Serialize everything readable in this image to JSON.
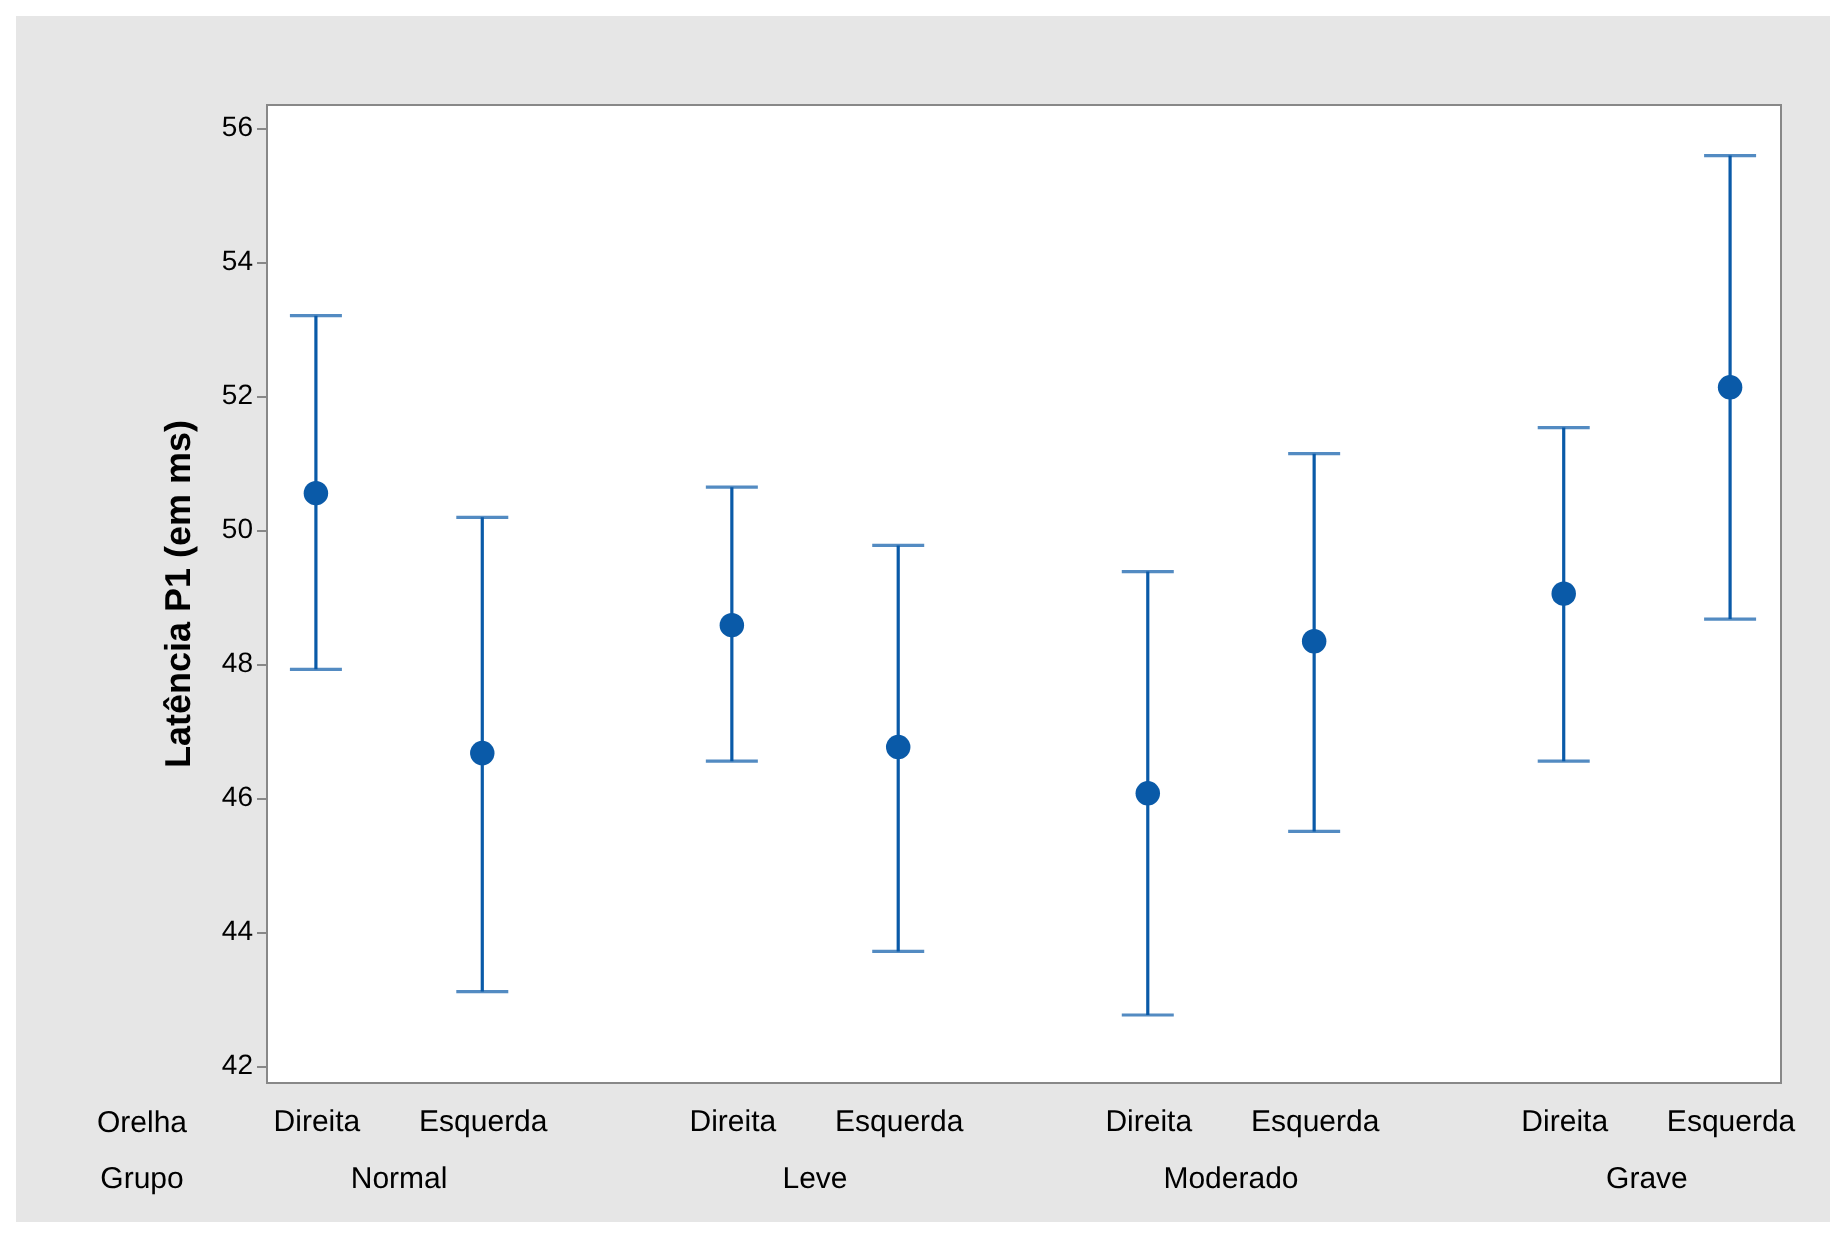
{
  "chart_data": {
    "type": "scatter",
    "ylabel": "Latência P1 (em ms)",
    "categories": [
      "Direita",
      "Esquerda",
      "Direita",
      "Esquerda",
      "Direita",
      "Esquerda",
      "Direita",
      "Esquerda"
    ],
    "series": [
      {
        "color": "#0a5aa8",
        "values": [
          50.54,
          46.66,
          48.57,
          46.75,
          46.06,
          48.33,
          49.04,
          52.12
        ],
        "errors": [
          [
            47.91,
            53.19
          ],
          [
            43.1,
            50.18
          ],
          [
            46.54,
            50.63
          ],
          [
            43.7,
            49.76
          ],
          [
            42.75,
            49.37
          ],
          [
            45.49,
            51.13
          ],
          [
            46.54,
            51.52
          ],
          [
            48.66,
            55.58
          ]
        ]
      }
    ],
    "annotations": [
      "Orelha",
      "Grupo",
      "Normal",
      "Leve",
      "Moderado",
      "Grave"
    ],
    "ylim": [
      41.75,
      56.35
    ],
    "yticks": [
      42,
      44,
      46,
      48,
      50,
      52,
      54,
      56
    ],
    "marker": "circle",
    "grid": false
  }
}
